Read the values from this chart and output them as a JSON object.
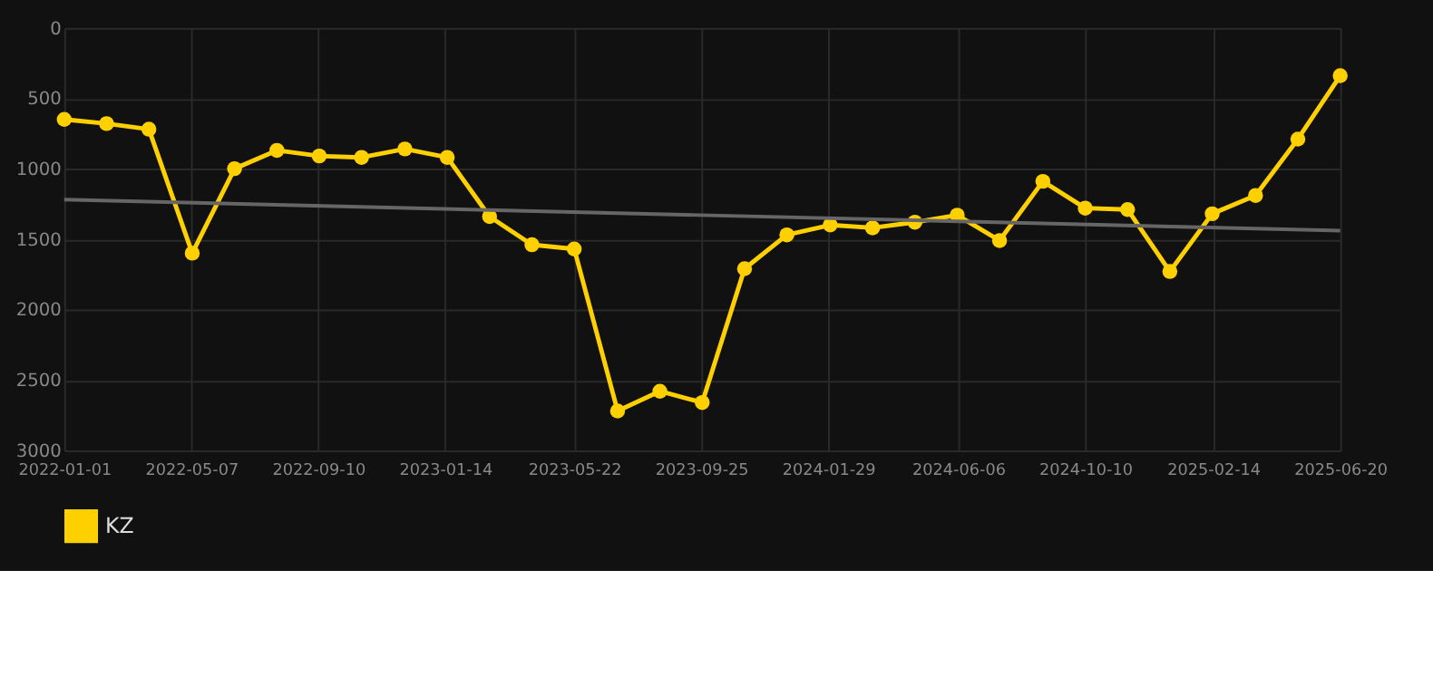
{
  "chart_data": {
    "type": "line",
    "x": [
      "2022-01-01",
      "2022-02-12",
      "2022-03-26",
      "2022-05-08",
      "2022-06-19",
      "2022-07-31",
      "2022-09-11",
      "2022-10-23",
      "2022-12-05",
      "2023-01-16",
      "2023-02-27",
      "2023-04-10",
      "2023-05-22",
      "2023-07-04",
      "2023-08-15",
      "2023-09-26",
      "2023-11-07",
      "2023-12-19",
      "2024-01-31",
      "2024-03-13",
      "2024-04-24",
      "2024-06-05",
      "2024-07-17",
      "2024-08-29",
      "2024-10-10",
      "2024-11-21",
      "2025-01-02",
      "2025-02-13",
      "2025-03-28",
      "2025-05-09",
      "2025-06-20"
    ],
    "series": [
      {
        "name": "KZ",
        "color": "#ffd000",
        "values": [
          650,
          680,
          720,
          1600,
          1000,
          870,
          910,
          920,
          860,
          920,
          1340,
          1540,
          1570,
          2720,
          2580,
          2660,
          1710,
          1470,
          1400,
          1420,
          1380,
          1330,
          1510,
          1090,
          1280,
          1290,
          1730,
          1320,
          1190,
          790,
          340
        ]
      },
      {
        "type": "line",
        "color": "#666666",
        "x": [
          "2022-01-01",
          "2025-06-20"
        ],
        "values": [
          1220,
          1440
        ],
        "marker": "none"
      }
    ],
    "ylim": [
      3000,
      0
    ],
    "yticks": [
      0,
      500,
      1000,
      1500,
      2000,
      2500,
      3000
    ],
    "xlim": [
      "2022-01-01",
      "2025-06-20"
    ],
    "xticks": [
      "2022-01-01",
      "2022-05-07",
      "2022-09-10",
      "2023-01-14",
      "2023-05-22",
      "2023-09-25",
      "2024-01-29",
      "2024-06-06",
      "2024-10-10",
      "2025-02-14",
      "2025-06-20"
    ],
    "grid": true,
    "legend": "bottom",
    "marker": "circle"
  }
}
